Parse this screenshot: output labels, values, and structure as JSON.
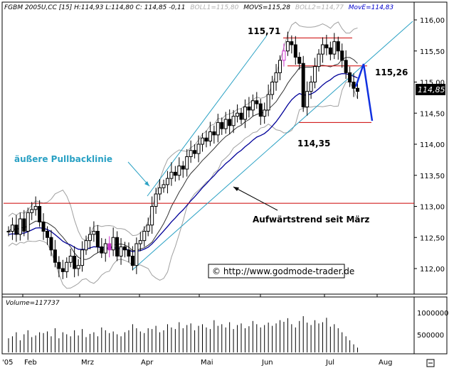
{
  "header": {
    "parts": [
      {
        "text": "FGBM 2005U,CC [15] H:114,93 L:114,80 C: 114,85 -0,11",
        "color": "#000000"
      },
      {
        "text": "BOLL1=115,80",
        "color": "#b0b0b0"
      },
      {
        "text": "MOVS=115,28",
        "color": "#000000"
      },
      {
        "text": "BOLL2=114,77",
        "color": "#b0b0b0"
      },
      {
        "text": "MovE=114,83",
        "color": "#0000cc"
      }
    ]
  },
  "annotations": {
    "high": "115,71",
    "low": "114,35",
    "target": "115,26",
    "pullback": "äußere Pullbacklinie",
    "trend": "Aufwärtstrend seit März",
    "copyright": "© http://www.godmode-trader.de",
    "last_price": "114,85"
  },
  "volume": {
    "label": "Volume=117737",
    "ticks": [
      "1000000",
      "500000"
    ]
  },
  "colors": {
    "candle": "#000000",
    "candle_highlight": "#cc33cc",
    "moving_avg_blue": "#000099",
    "bollinger": "#a0a0a0",
    "trend_channel": "#2aa1c4",
    "horizontal_levels": "#cc0000",
    "projection": "#1030e0",
    "price_badge_bg": "#000000",
    "price_badge_fg": "#ffffff"
  },
  "chart_data": {
    "type": "candlestick",
    "title": "FGBM 2005U,CC [15]",
    "x_labels": [
      "'05",
      "Feb",
      "Mrz",
      "Apr",
      "Mai",
      "Jun",
      "Jul",
      "Aug"
    ],
    "y_ticks": [
      "116,00",
      "115,50",
      "115,00",
      "114,50",
      "114,00",
      "113,50",
      "113,00",
      "112,50",
      "112,00"
    ],
    "ylim": [
      111.6,
      116.2
    ],
    "last": {
      "open": 114.96,
      "high": 114.93,
      "low": 114.8,
      "close": 114.85,
      "change": -0.11
    },
    "indicators": {
      "BOLL1": 115.8,
      "MOVS": 115.28,
      "BOLL2": 114.77,
      "MovE": 114.83
    },
    "horizontal_levels": [
      113.05,
      115.71,
      115.26,
      114.35
    ],
    "closes": [
      112.6,
      112.7,
      112.55,
      112.8,
      112.6,
      112.9,
      112.95,
      113.0,
      112.75,
      112.6,
      112.5,
      112.3,
      112.1,
      112.0,
      111.95,
      112.1,
      112.2,
      112.0,
      112.05,
      112.3,
      112.45,
      112.55,
      112.6,
      112.35,
      112.25,
      112.4,
      112.3,
      112.5,
      112.2,
      112.35,
      112.3,
      112.2,
      112.05,
      112.4,
      112.45,
      112.6,
      112.7,
      113.0,
      113.2,
      113.3,
      113.35,
      113.45,
      113.55,
      113.5,
      113.65,
      113.6,
      113.8,
      113.9,
      113.85,
      114.0,
      114.1,
      114.05,
      114.2,
      114.15,
      114.35,
      114.25,
      114.4,
      114.3,
      114.45,
      114.5,
      114.4,
      114.6,
      114.55,
      114.7,
      114.65,
      114.45,
      114.55,
      114.8,
      115.0,
      115.15,
      115.35,
      115.5,
      115.65,
      115.6,
      115.4,
      115.3,
      114.6,
      114.85,
      115.0,
      115.25,
      115.45,
      115.6,
      115.55,
      115.45,
      115.65,
      115.5,
      115.35,
      115.15,
      115.0,
      114.9,
      114.85
    ],
    "volume": [
      0.35,
      0.4,
      0.5,
      0.3,
      0.45,
      0.55,
      0.38,
      0.42,
      0.5,
      0.48,
      0.52,
      0.4,
      0.6,
      0.35,
      0.5,
      0.45,
      0.4,
      0.55,
      0.42,
      0.58,
      0.38,
      0.46,
      0.5,
      0.4,
      0.62,
      0.55,
      0.48,
      0.52,
      0.45,
      0.4,
      0.5,
      0.55,
      0.7,
      0.6,
      0.52,
      0.48,
      0.6,
      0.58,
      0.66,
      0.5,
      0.55,
      0.7,
      0.62,
      0.58,
      0.75,
      0.6,
      0.68,
      0.72,
      0.55,
      0.66,
      0.7,
      0.62,
      0.58,
      0.8,
      0.66,
      0.7,
      0.62,
      0.75,
      0.58,
      0.68,
      0.72,
      0.6,
      0.65,
      0.78,
      0.7,
      0.62,
      0.68,
      0.74,
      0.66,
      0.72,
      0.8,
      0.76,
      0.85,
      0.7,
      0.62,
      0.78,
      0.9,
      0.74,
      0.68,
      0.8,
      0.72,
      0.75,
      0.86,
      0.64,
      0.7,
      0.6,
      0.5,
      0.4,
      0.3,
      0.2,
      0.12
    ]
  }
}
